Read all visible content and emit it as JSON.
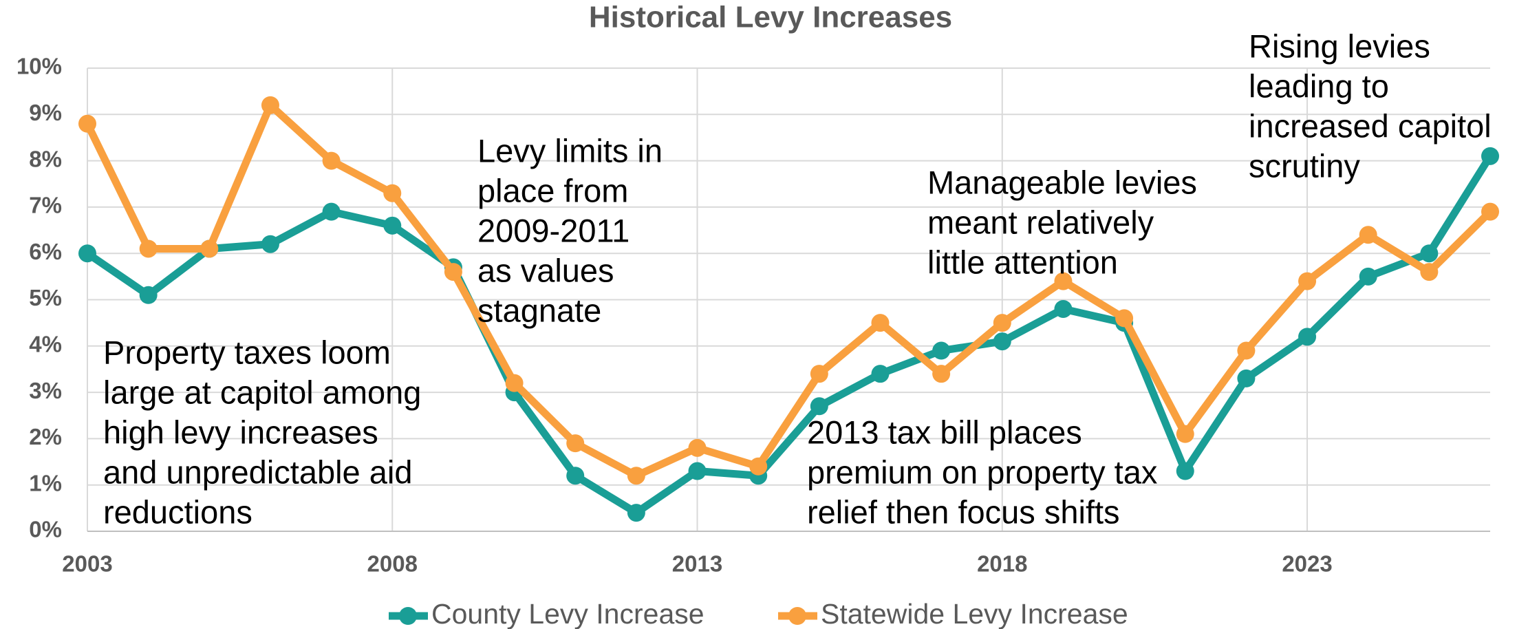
{
  "chart_data": {
    "type": "line",
    "title": "Historical Levy Increases",
    "x": [
      2003,
      2004,
      2005,
      2006,
      2007,
      2008,
      2009,
      2010,
      2011,
      2012,
      2013,
      2014,
      2015,
      2016,
      2017,
      2018,
      2019,
      2020,
      2021,
      2022,
      2023,
      2024,
      2025,
      2026
    ],
    "series": [
      {
        "name": "County Levy Increase",
        "color": "#1a9e96",
        "values": [
          6.0,
          5.1,
          6.1,
          6.2,
          6.9,
          6.6,
          5.7,
          3.0,
          1.2,
          0.4,
          1.3,
          1.2,
          2.7,
          3.4,
          3.9,
          4.1,
          4.8,
          4.5,
          1.3,
          3.3,
          4.2,
          5.5,
          6.0,
          8.1
        ]
      },
      {
        "name": "Statewide Levy Increase",
        "color": "#f9a03f",
        "values": [
          8.8,
          6.1,
          6.1,
          9.2,
          8.0,
          7.3,
          5.6,
          3.2,
          1.9,
          1.2,
          1.8,
          1.4,
          3.4,
          4.5,
          3.4,
          4.5,
          5.4,
          4.6,
          2.1,
          3.9,
          5.4,
          6.4,
          5.6,
          6.9
        ]
      }
    ],
    "xlim": [
      2003,
      2026
    ],
    "xticks": [
      2003,
      2008,
      2013,
      2018,
      2023
    ],
    "ylim": [
      0,
      10
    ],
    "yticks": [
      {
        "value": 0,
        "label": "0%"
      },
      {
        "value": 1,
        "label": "1%"
      },
      {
        "value": 2,
        "label": "2%"
      },
      {
        "value": 3,
        "label": "3%"
      },
      {
        "value": 4,
        "label": "4%"
      },
      {
        "value": 5,
        "label": "5%"
      },
      {
        "value": 6,
        "label": "6%"
      },
      {
        "value": 7,
        "label": "7%"
      },
      {
        "value": 8,
        "label": "8%"
      },
      {
        "value": 9,
        "label": "9%"
      },
      {
        "value": 10,
        "label": "10%"
      }
    ],
    "grid": true,
    "legend": "bottom",
    "annotations": [
      {
        "lines": [
          "Property taxes loom",
          "large at capitol among",
          "high levy increases",
          "and unpredictable aid",
          "reductions"
        ]
      },
      {
        "lines": [
          "Levy limits in",
          "place from",
          "2009-2011",
          "as values",
          "stagnate"
        ]
      },
      {
        "lines": [
          "2013 tax bill places",
          "premium on property tax",
          "relief then focus shifts"
        ]
      },
      {
        "lines": [
          "Manageable levies",
          "meant relatively",
          "little attention"
        ]
      },
      {
        "lines": [
          "Rising levies",
          "leading to",
          "increased capitol",
          "scrutiny"
        ]
      }
    ]
  }
}
